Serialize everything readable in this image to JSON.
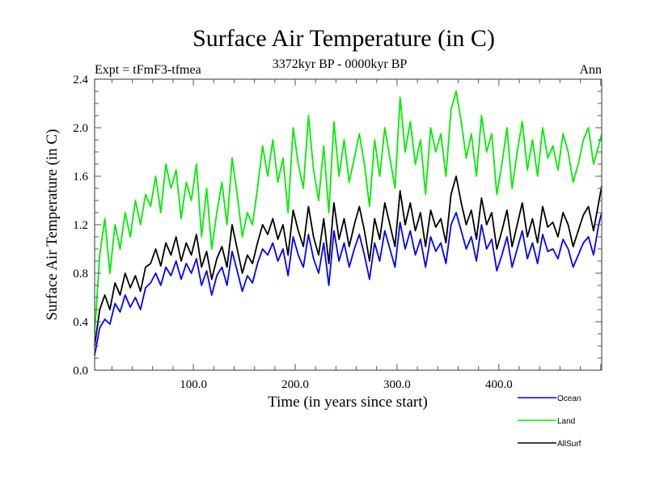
{
  "chart_data": {
    "type": "line",
    "title": "Surface Air Temperature (in C)",
    "subtitle_left": "Expt = tFmF3-tfmea",
    "subtitle_center": "3372kyr BP - 0000kyr BP",
    "subtitle_right": "Ann",
    "xlabel": "Time (in years since start)",
    "ylabel": "Surface Air Temperature (in C)",
    "xlim": [
      3,
      501
    ],
    "ylim": [
      0.0,
      2.4
    ],
    "x_ticks": [
      100,
      200,
      300,
      400
    ],
    "x_tick_labels": [
      "100.0",
      "200.0",
      "300.0",
      "400.0"
    ],
    "y_ticks": [
      0.0,
      0.4,
      0.8,
      1.2,
      1.6,
      2.0,
      2.4
    ],
    "y_tick_labels": [
      "0.0",
      "0.4",
      "0.8",
      "1.2",
      "1.6",
      "2.0",
      "2.4"
    ],
    "grid": false,
    "legend_position": "bottom-right-outside",
    "x": [
      3,
      8,
      13,
      18,
      23,
      28,
      33,
      38,
      43,
      48,
      53,
      58,
      63,
      68,
      73,
      78,
      83,
      88,
      93,
      98,
      103,
      108,
      113,
      118,
      123,
      128,
      133,
      138,
      143,
      148,
      153,
      158,
      163,
      168,
      173,
      178,
      183,
      188,
      193,
      198,
      203,
      208,
      213,
      218,
      223,
      228,
      233,
      238,
      243,
      248,
      253,
      258,
      263,
      268,
      273,
      278,
      283,
      288,
      293,
      298,
      303,
      308,
      313,
      318,
      323,
      328,
      333,
      338,
      343,
      348,
      353,
      358,
      363,
      368,
      373,
      378,
      383,
      388,
      393,
      398,
      403,
      408,
      413,
      418,
      423,
      428,
      433,
      438,
      443,
      448,
      453,
      458,
      463,
      468,
      473,
      478,
      483,
      488,
      493,
      498,
      501
    ],
    "series": [
      {
        "name": "Ocean",
        "color": "#0000ff",
        "values": [
          0.12,
          0.35,
          0.42,
          0.38,
          0.55,
          0.48,
          0.62,
          0.52,
          0.6,
          0.5,
          0.68,
          0.72,
          0.8,
          0.7,
          0.85,
          0.78,
          0.9,
          0.75,
          0.88,
          0.8,
          0.92,
          0.7,
          0.82,
          0.62,
          0.78,
          0.85,
          0.7,
          0.98,
          0.82,
          0.65,
          0.78,
          0.72,
          0.88,
          1.0,
          0.95,
          1.05,
          0.9,
          1.0,
          0.78,
          1.1,
          0.95,
          0.85,
          1.12,
          0.92,
          0.8,
          1.05,
          0.7,
          1.15,
          0.9,
          1.05,
          0.85,
          1.0,
          1.12,
          0.95,
          0.75,
          1.05,
          0.9,
          1.15,
          1.0,
          0.85,
          1.22,
          1.0,
          1.15,
          0.95,
          1.08,
          0.85,
          1.1,
          0.98,
          1.05,
          0.88,
          1.2,
          1.3,
          1.15,
          1.0,
          1.1,
          0.9,
          1.2,
          1.0,
          1.08,
          0.82,
          0.95,
          1.1,
          0.85,
          1.0,
          1.15,
          0.92,
          1.05,
          0.88,
          1.12,
          0.98,
          1.0,
          0.92,
          1.08,
          1.0,
          0.85,
          0.95,
          1.05,
          1.1,
          0.95,
          1.2,
          1.3
        ]
      },
      {
        "name": "Land",
        "color": "#00ee00",
        "values": [
          0.3,
          0.95,
          1.25,
          0.8,
          1.2,
          1.0,
          1.3,
          1.1,
          1.4,
          1.2,
          1.45,
          1.35,
          1.6,
          1.3,
          1.7,
          1.5,
          1.65,
          1.25,
          1.55,
          1.4,
          1.7,
          1.1,
          1.5,
          1.0,
          1.3,
          1.55,
          1.2,
          1.75,
          1.45,
          1.1,
          1.3,
          1.2,
          1.5,
          1.85,
          1.6,
          1.9,
          1.55,
          1.75,
          1.3,
          2.0,
          1.7,
          1.5,
          2.1,
          1.65,
          1.4,
          1.85,
          1.3,
          2.05,
          1.6,
          1.9,
          1.55,
          1.75,
          1.95,
          1.7,
          1.35,
          1.9,
          1.6,
          2.0,
          1.75,
          1.5,
          2.25,
          1.8,
          2.05,
          1.7,
          1.9,
          1.45,
          2.0,
          1.8,
          1.95,
          1.6,
          2.15,
          2.3,
          2.05,
          1.75,
          1.95,
          1.6,
          2.1,
          1.8,
          1.95,
          1.45,
          1.7,
          2.0,
          1.5,
          1.8,
          2.05,
          1.65,
          1.9,
          1.6,
          2.0,
          1.75,
          1.85,
          1.65,
          1.95,
          1.8,
          1.55,
          1.7,
          1.9,
          2.0,
          1.7,
          1.85,
          1.95
        ]
      },
      {
        "name": "AllSurf",
        "color": "#000000",
        "values": [
          0.2,
          0.5,
          0.62,
          0.5,
          0.72,
          0.62,
          0.8,
          0.68,
          0.78,
          0.65,
          0.85,
          0.88,
          1.0,
          0.86,
          1.05,
          0.95,
          1.1,
          0.9,
          1.05,
          0.95,
          1.12,
          0.85,
          0.98,
          0.75,
          0.92,
          1.02,
          0.85,
          1.2,
          1.0,
          0.8,
          0.95,
          0.88,
          1.05,
          1.2,
          1.12,
          1.25,
          1.08,
          1.2,
          0.95,
          1.32,
          1.15,
          1.02,
          1.35,
          1.1,
          0.95,
          1.25,
          0.88,
          1.38,
          1.08,
          1.25,
          1.02,
          1.2,
          1.35,
          1.15,
          0.9,
          1.25,
          1.08,
          1.38,
          1.2,
          1.02,
          1.48,
          1.2,
          1.38,
          1.15,
          1.3,
          1.02,
          1.32,
          1.18,
          1.25,
          1.05,
          1.45,
          1.6,
          1.38,
          1.2,
          1.32,
          1.08,
          1.42,
          1.2,
          1.3,
          1.0,
          1.15,
          1.32,
          1.02,
          1.2,
          1.38,
          1.1,
          1.25,
          1.05,
          1.35,
          1.18,
          1.22,
          1.1,
          1.3,
          1.2,
          1.02,
          1.15,
          1.28,
          1.35,
          1.15,
          1.38,
          1.52
        ]
      }
    ]
  }
}
